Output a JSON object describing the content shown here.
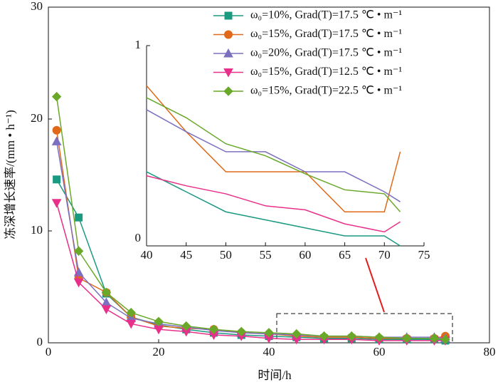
{
  "chart_data": [
    {
      "type": "line",
      "x_label": "时间/h",
      "y_label": "冻深增长速率/(mm • h⁻¹)",
      "x": [
        1.5,
        5.5,
        10.5,
        15,
        20,
        25,
        30,
        35,
        40,
        45,
        50,
        55,
        60,
        65,
        70,
        72
      ],
      "xlim": [
        0,
        80
      ],
      "xticks": [
        0,
        20,
        40,
        60,
        80
      ],
      "ylim": [
        0,
        30
      ],
      "yticks": [
        0,
        10,
        20,
        30
      ],
      "legend": "upper right",
      "series": [
        {
          "name": "ω₀=10%, Grad(T)=17.5 ℃ • m⁻¹",
          "color": "#1a9a80",
          "marker": "square",
          "values": [
            14.6,
            11.2,
            4.4,
            2.3,
            1.6,
            1.2,
            0.9,
            0.7,
            0.6,
            0.5,
            0.4,
            0.4,
            0.3,
            0.3,
            0.3,
            0.2
          ]
        },
        {
          "name": "ω₀=15%, Grad(T)=17.5 ℃ • m⁻¹",
          "color": "#e06a1a",
          "marker": "circle",
          "values": [
            19.0,
            5.8,
            4.5,
            2.3,
            1.5,
            1.3,
            1.2,
            0.9,
            0.8,
            0.6,
            0.5,
            0.5,
            0.4,
            0.4,
            0.4,
            0.6
          ]
        },
        {
          "name": "ω₀=20%, Grad(T)=17.5 ℃ • m⁻¹",
          "color": "#7b70c0",
          "marker": "triangle-up",
          "values": [
            18.0,
            6.3,
            3.6,
            2.2,
            1.7,
            1.4,
            1.1,
            0.9,
            0.8,
            0.7,
            0.6,
            0.6,
            0.5,
            0.5,
            0.5,
            0.4
          ]
        },
        {
          "name": "ω₀=15%, Grad(T)=12.5 ℃ • m⁻¹",
          "color": "#e8308a",
          "marker": "triangle-down",
          "values": [
            12.5,
            5.4,
            3.0,
            1.7,
            1.2,
            1.0,
            0.7,
            0.6,
            0.4,
            0.3,
            0.3,
            0.3,
            0.2,
            0.2,
            0.2,
            0.2
          ]
        },
        {
          "name": "ω₀=15%, Grad(T)=22.5 ℃ • m⁻¹",
          "color": "#6aa82a",
          "marker": "diamond",
          "values": [
            22.0,
            8.2,
            4.5,
            2.7,
            1.9,
            1.5,
            1.2,
            1.0,
            0.9,
            0.8,
            0.6,
            0.6,
            0.5,
            0.4,
            0.4,
            0.3
          ]
        }
      ]
    },
    {
      "type": "line",
      "x": [
        40,
        45,
        50,
        55,
        60,
        65,
        70,
        72
      ],
      "xlim": [
        40,
        75
      ],
      "xticks": [
        40,
        45,
        50,
        55,
        60,
        65,
        70,
        75
      ],
      "ylim": [
        0,
        1
      ],
      "yticks": [
        0,
        1
      ],
      "series": [
        {
          "color": "#1a9a80",
          "values": [
            0.37,
            0.27,
            0.17,
            0.13,
            0.09,
            0.05,
            0.05,
            0
          ]
        },
        {
          "color": "#e06a1a",
          "values": [
            0.8,
            0.57,
            0.37,
            0.37,
            0.37,
            0.17,
            0.17,
            0.47
          ]
        },
        {
          "color": "#7b70c0",
          "values": [
            0.68,
            0.57,
            0.47,
            0.47,
            0.37,
            0.37,
            0.27,
            0.22
          ]
        },
        {
          "color": "#e8308a",
          "values": [
            0.35,
            0.3,
            0.26,
            0.2,
            0.18,
            0.11,
            0.07,
            0.12
          ]
        },
        {
          "color": "#6aa82a",
          "values": [
            0.74,
            0.64,
            0.51,
            0.45,
            0.36,
            0.28,
            0.26,
            0.17
          ]
        }
      ]
    }
  ]
}
